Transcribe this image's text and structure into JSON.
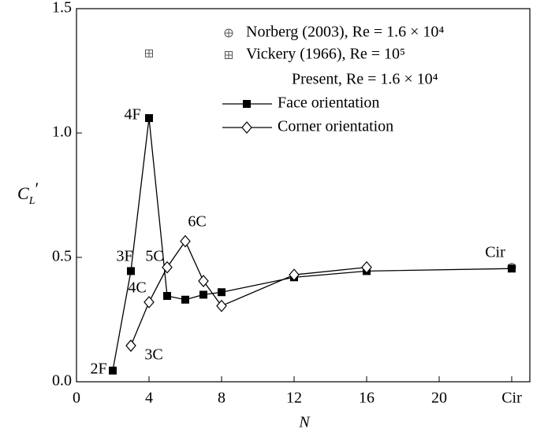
{
  "chart_data": {
    "type": "line",
    "x_label": "N",
    "y_label": [
      "C",
      "L",
      "′"
    ],
    "xlim": [
      0,
      25
    ],
    "ylim": [
      0,
      1.5
    ],
    "xticks": [
      0,
      4,
      8,
      12,
      16,
      20,
      {
        "value": 24,
        "label": "Cir"
      }
    ],
    "yticks": [
      {
        "value": 0,
        "label": "0.0"
      },
      0.5,
      {
        "value": 1,
        "label": "1.0"
      },
      1.5
    ],
    "legend_title": "Present,  Re = 1.6 × 10⁴",
    "series": [
      {
        "name": "Norberg (2003), Re = 1.6 × 10⁴",
        "marker": "circle-plus",
        "color": "#555555",
        "line": false,
        "x": [
          24
        ],
        "values": [
          0.46
        ]
      },
      {
        "name": "Vickery (1966), Re = 10⁵",
        "marker": "square-plus",
        "color": "#555555",
        "line": false,
        "x": [
          4
        ],
        "values": [
          1.32
        ]
      },
      {
        "name": "Face orientation",
        "marker": "square",
        "color": "#000000",
        "line": true,
        "x": [
          2,
          3,
          4,
          5,
          6,
          7,
          8,
          12,
          16,
          24
        ],
        "values": [
          0.045,
          0.445,
          1.06,
          0.345,
          0.33,
          0.35,
          0.36,
          0.42,
          0.445,
          0.455
        ]
      },
      {
        "name": "Corner orientation",
        "marker": "diamond",
        "color": "#000000",
        "line": true,
        "x": [
          3,
          4,
          5,
          6,
          7,
          8,
          12,
          16
        ],
        "values": [
          0.145,
          0.32,
          0.46,
          0.565,
          0.405,
          0.305,
          0.43,
          0.46
        ]
      }
    ],
    "annotations": [
      "2F",
      "3F",
      "4F",
      "5C",
      "6C",
      "4C",
      "3C",
      "Cir"
    ]
  }
}
